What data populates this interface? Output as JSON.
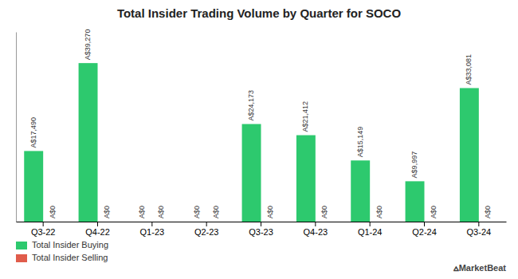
{
  "chart_data": {
    "type": "bar",
    "title": "Total Insider Trading Volume by Quarter for SOCO",
    "categories": [
      "Q3-22",
      "Q4-22",
      "Q1-23",
      "Q2-23",
      "Q3-23",
      "Q4-23",
      "Q1-24",
      "Q2-24",
      "Q3-24"
    ],
    "series": [
      {
        "name": "Total Insider Buying",
        "color": "#2dc96e",
        "values": [
          17490,
          39270,
          0,
          0,
          24173,
          21412,
          15149,
          9997,
          33081
        ],
        "value_labels": [
          "A$17,490",
          "A$39,270",
          "A$0",
          "A$0",
          "A$24,173",
          "A$21,412",
          "A$15,149",
          "A$9,997",
          "A$33,081"
        ]
      },
      {
        "name": "Total Insider Selling",
        "color": "#e05c4b",
        "values": [
          0,
          0,
          0,
          0,
          0,
          0,
          0,
          0,
          0
        ],
        "value_labels": [
          "A$0",
          "A$0",
          "A$0",
          "A$0",
          "A$0",
          "A$0",
          "A$0",
          "A$0",
          "A$0"
        ]
      }
    ],
    "ylim": [
      0,
      47000
    ],
    "data_labels": true,
    "tick_labels": "x",
    "legend": "lower left",
    "annotations": [
      "⩟MarketBeat"
    ]
  }
}
